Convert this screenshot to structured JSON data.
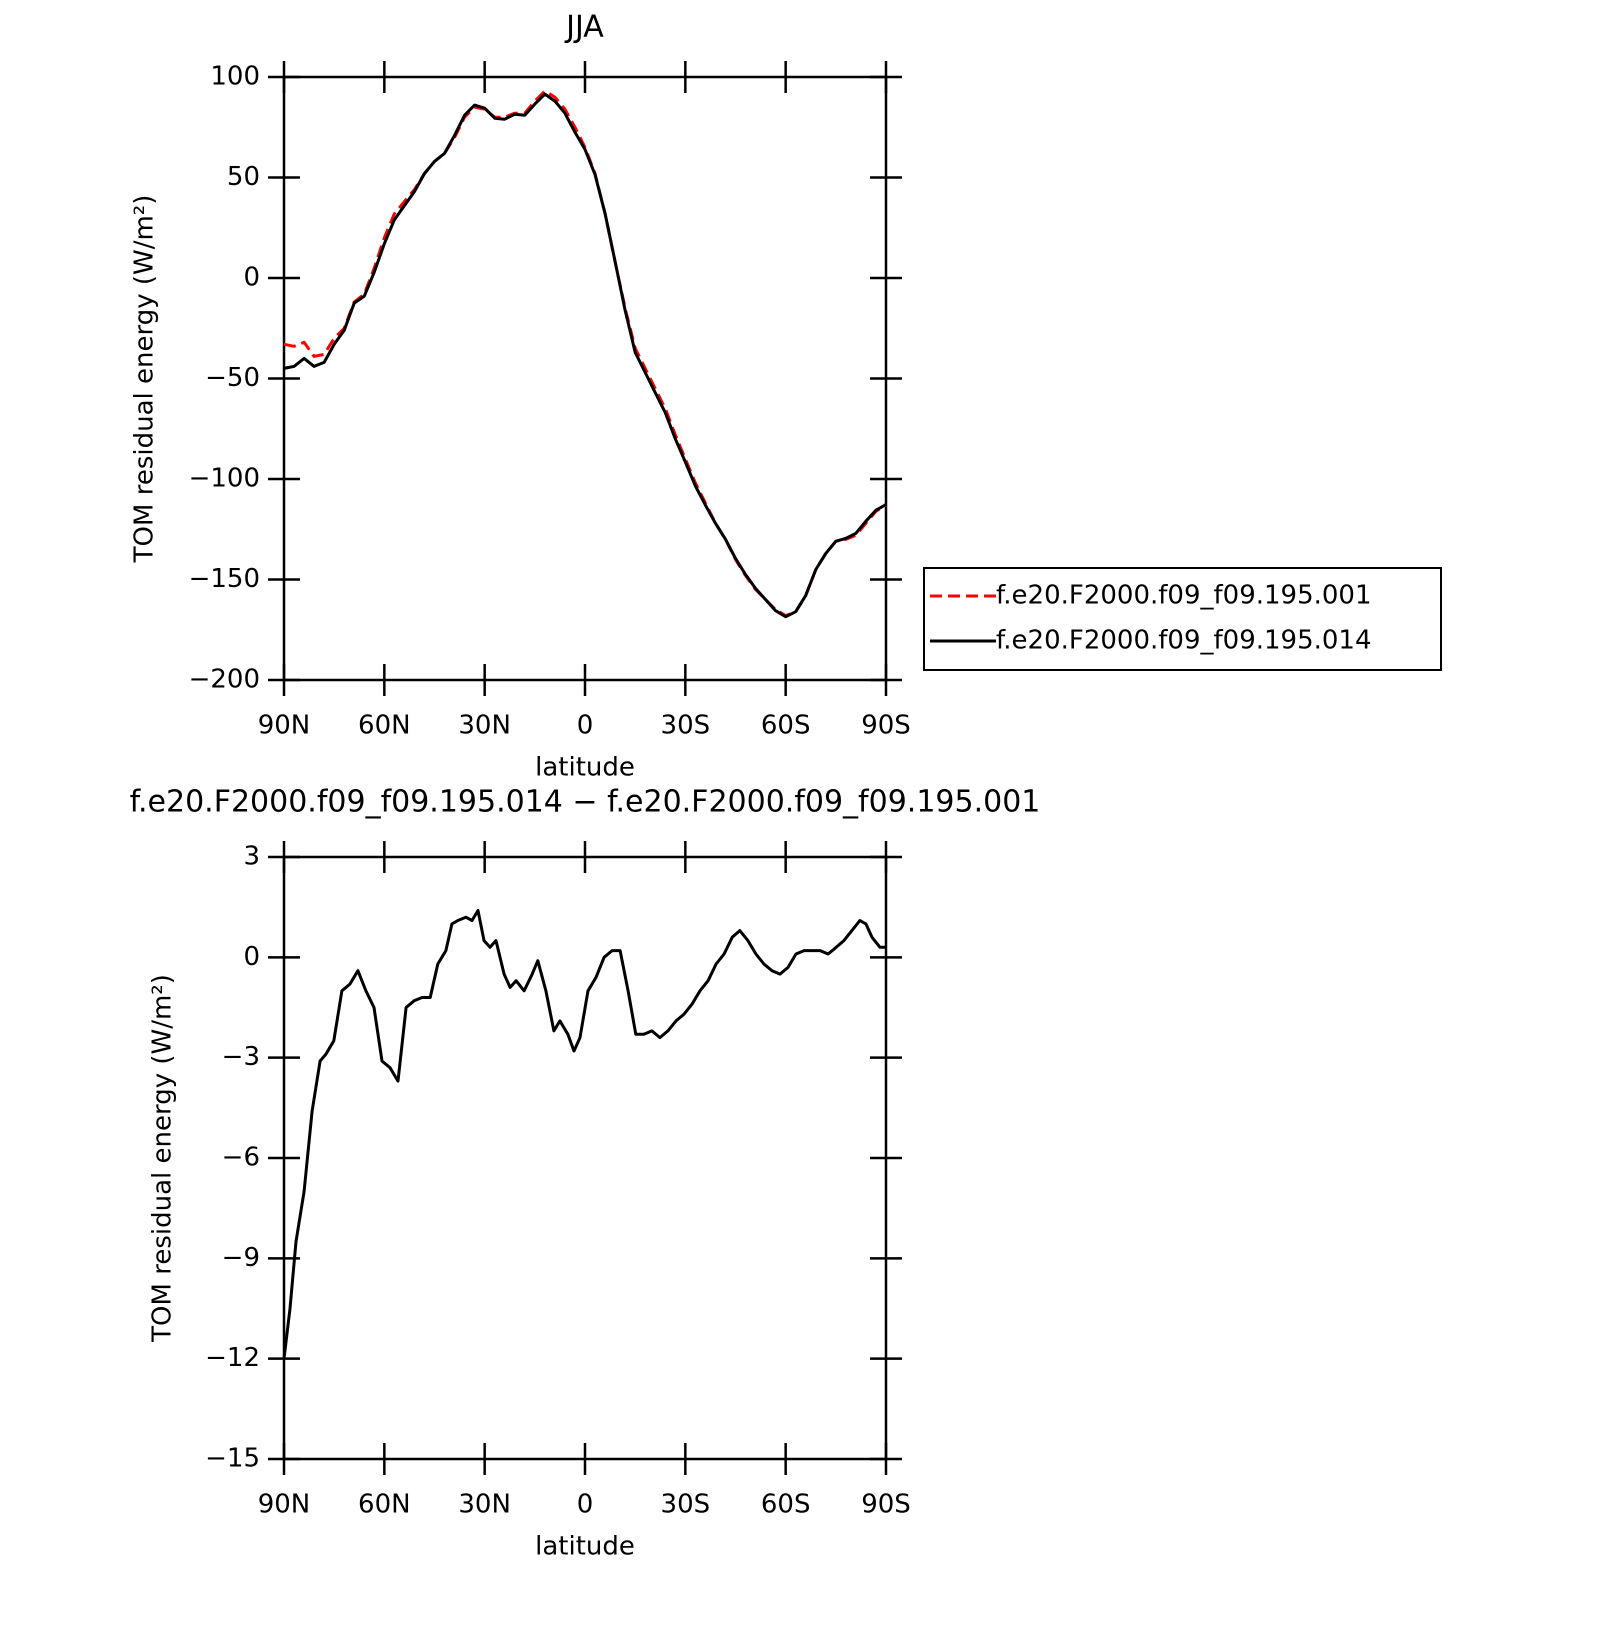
{
  "chart_data": [
    {
      "type": "line",
      "title": "JJA",
      "x_label": "latitude",
      "y_label": "TOM residual energy (W/m²)",
      "xlim": [
        90,
        -90
      ],
      "xticks": [
        {
          "value": 90,
          "label": "90N"
        },
        {
          "value": 60,
          "label": "60N"
        },
        {
          "value": 30,
          "label": "30N"
        },
        0,
        {
          "value": -30,
          "label": "30S"
        },
        {
          "value": -60,
          "label": "60S"
        },
        {
          "value": -90,
          "label": "90S"
        }
      ],
      "ylim": [
        -200,
        100
      ],
      "yticks": [
        100,
        50,
        0,
        {
          "value": -50,
          "label": "−50"
        },
        {
          "value": -100,
          "label": "−100"
        },
        {
          "value": -150,
          "label": "−150"
        },
        {
          "value": -200,
          "label": "−200"
        }
      ],
      "legend": "right",
      "x": [
        90,
        87,
        84,
        81,
        78,
        75,
        72,
        69,
        66,
        63,
        60,
        57,
        54,
        51,
        48,
        45,
        42,
        39,
        36,
        33,
        30,
        27,
        24,
        21,
        18,
        15,
        12,
        9,
        6,
        3,
        0,
        -3,
        -6,
        -9,
        -12,
        -15,
        -18,
        -21,
        -24,
        -27,
        -30,
        -33,
        -36,
        -39,
        -42,
        -45,
        -48,
        -51,
        -54,
        -57,
        -60,
        -63,
        -66,
        -69,
        -72,
        -75,
        -78,
        -81,
        -84,
        -87,
        -90
      ],
      "series": [
        {
          "name": "f.e20.F2000.f09_f09.195.001",
          "color": "#ff0000",
          "line_style": "dashed",
          "values": [
            -33,
            -34,
            -32,
            -39,
            -38,
            -30,
            -25,
            -12,
            -8,
            5,
            20,
            32,
            38,
            44,
            52,
            58,
            62,
            70,
            80,
            85,
            84,
            80,
            80,
            82,
            82,
            88,
            93,
            90,
            84,
            75,
            65,
            52,
            32,
            8,
            -15,
            -35,
            -45,
            -55,
            -65,
            -78,
            -90,
            -102,
            -112,
            -122,
            -130,
            -140,
            -148,
            -155,
            -160,
            -165,
            -168,
            -166,
            -158,
            -145,
            -137,
            -131,
            -130,
            -128,
            -122,
            -116,
            -113
          ]
        },
        {
          "name": "f.e20.F2000.f09_f09.195.014",
          "color": "#000000",
          "line_style": "solid",
          "values": [
            -45,
            -44,
            -40,
            -44,
            -42,
            -33,
            -26,
            -12.5,
            -9,
            3,
            17,
            29,
            36,
            43,
            52,
            58,
            62,
            71,
            81,
            86,
            84.5,
            79.5,
            79,
            81.5,
            81,
            86.5,
            91.5,
            88,
            82,
            72.5,
            64,
            51.5,
            32,
            8.2,
            -16,
            -37,
            -47,
            -57,
            -67,
            -80,
            -91.5,
            -103.5,
            -113,
            -122,
            -130,
            -139.5,
            -147.5,
            -154.5,
            -160,
            -165.5,
            -168.5,
            -166,
            -158,
            -145,
            -137,
            -131,
            -129.5,
            -127,
            -121,
            -115.5,
            -112.7
          ]
        }
      ]
    },
    {
      "type": "line",
      "title": "f.e20.F2000.f09_f09.195.014 − f.e20.F2000.f09_f09.195.001",
      "x_label": "latitude",
      "y_label": "TOM residual energy (W/m²)",
      "xlim": [
        90,
        -90
      ],
      "xticks": [
        {
          "value": 90,
          "label": "90N"
        },
        {
          "value": 60,
          "label": "60N"
        },
        {
          "value": 30,
          "label": "30N"
        },
        0,
        {
          "value": -30,
          "label": "30S"
        },
        {
          "value": -60,
          "label": "60S"
        },
        {
          "value": -90,
          "label": "90S"
        }
      ],
      "ylim": [
        -15,
        3
      ],
      "yticks": [
        3,
        0,
        {
          "value": -3,
          "label": "−3"
        },
        {
          "value": -6,
          "label": "−6"
        },
        {
          "value": -9,
          "label": "−9"
        },
        {
          "value": -12,
          "label": "−12"
        },
        {
          "value": -15,
          "label": "−15"
        }
      ],
      "x": [
        90,
        88.2,
        86.4,
        84,
        81.6,
        79.2,
        77.5,
        75.1,
        72.7,
        70.3,
        67.9,
        65.5,
        63.1,
        60.7,
        58.3,
        55.9,
        53.5,
        51.1,
        48.7,
        46.3,
        44,
        41.6,
        39.8,
        38,
        35.6,
        33.8,
        32,
        30.2,
        28.4,
        26.6,
        24.2,
        22.4,
        20.6,
        18.2,
        15.8,
        14.1,
        11.7,
        9.3,
        7.5,
        5.1,
        3.3,
        1.5,
        -0.9,
        -3.3,
        -5.7,
        -8.1,
        -10.5,
        -12.9,
        -15.2,
        -17.6,
        -20,
        -22.4,
        -24.8,
        -27.2,
        -29.6,
        -32,
        -34.4,
        -36.8,
        -39.2,
        -41.6,
        -44,
        -46.3,
        -48.7,
        -51.1,
        -53.5,
        -55.9,
        -58.3,
        -60.7,
        -63.1,
        -65.5,
        -67.9,
        -70.3,
        -72.7,
        -75.1,
        -77.4,
        -79.8,
        -82.2,
        -84,
        -85.8,
        -88.2,
        -90
      ],
      "series": [
        {
          "color": "#000000",
          "line_style": "solid",
          "values": [
            -12,
            -10.5,
            -8.5,
            -7,
            -4.6,
            -3.1,
            -2.9,
            -2.5,
            -1,
            -0.8,
            -0.4,
            -1,
            -1.5,
            -3.1,
            -3.3,
            -3.7,
            -1.5,
            -1.3,
            -1.2,
            -1.2,
            -0.2,
            0.2,
            1,
            1.1,
            1.2,
            1.1,
            1.4,
            0.5,
            0.3,
            0.5,
            -0.5,
            -0.9,
            -0.7,
            -1,
            -0.5,
            -0.1,
            -1,
            -2.2,
            -1.9,
            -2.3,
            -2.8,
            -2.4,
            -1,
            -0.6,
            0,
            0.2,
            0.2,
            -1,
            -2.3,
            -2.3,
            -2.2,
            -2.4,
            -2.2,
            -1.9,
            -1.7,
            -1.4,
            -1,
            -0.7,
            -0.2,
            0.1,
            0.6,
            0.8,
            0.5,
            0.1,
            -0.2,
            -0.4,
            -0.5,
            -0.3,
            0.1,
            0.2,
            0.2,
            0.2,
            0.1,
            0.3,
            0.5,
            0.8,
            1.1,
            1,
            0.6,
            0.3,
            0.3
          ]
        }
      ]
    }
  ]
}
